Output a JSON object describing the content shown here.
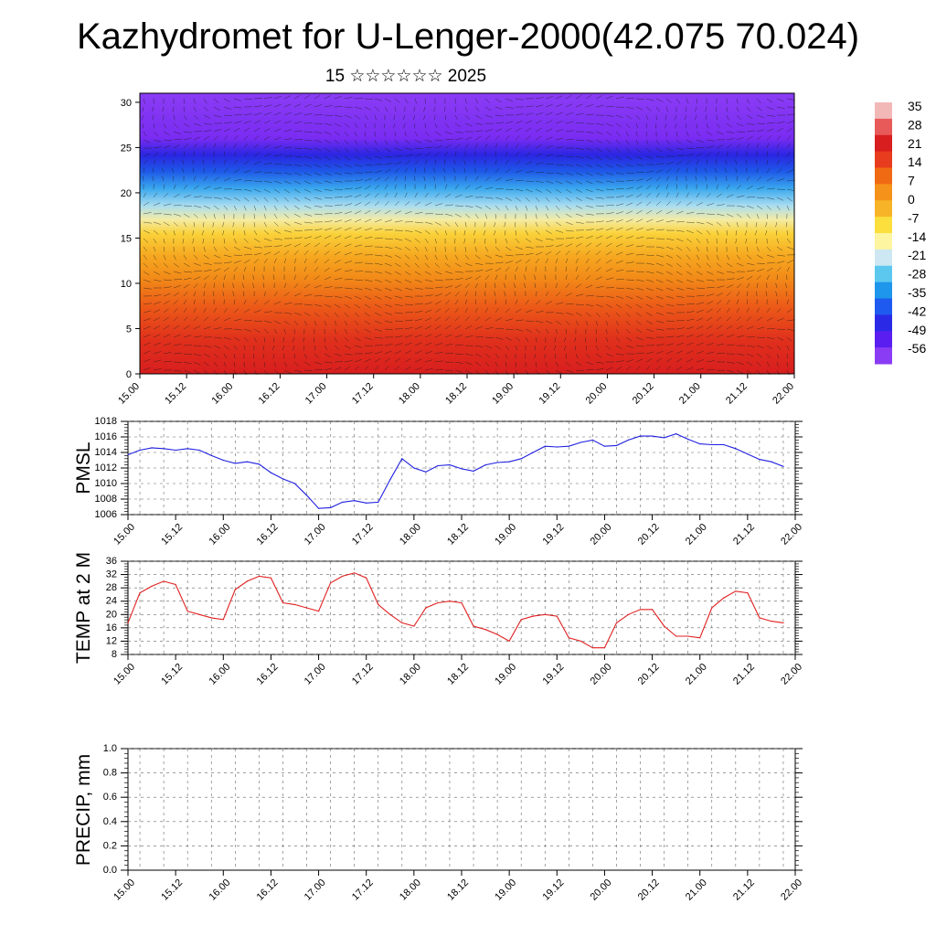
{
  "header": {
    "title": "Kazhydromet for U-Lenger-2000(42.075 70.024)",
    "subtitle": "15 ☆☆☆☆☆☆ 2025"
  },
  "colors": {
    "pmsl_line": "#1f1fe0",
    "temp_line": "#e01f1f",
    "frame": "#000000",
    "grid": "#666666"
  },
  "chart_data": [
    {
      "type": "heatmap",
      "title": "",
      "x_ticks": [
        "15.00",
        "15.12",
        "16.00",
        "16.12",
        "17.00",
        "17.12",
        "18.00",
        "18.12",
        "19.00",
        "19.12",
        "20.00",
        "20.12",
        "21.00",
        "21.12",
        "22.00"
      ],
      "y_ticks": [
        "0",
        "5",
        "10",
        "15",
        "20",
        "25",
        "30"
      ],
      "ylim": [
        0,
        31
      ],
      "colorbar_labels": [
        "35",
        "28",
        "21",
        "14",
        "7",
        "0",
        "-7",
        "-14",
        "-21",
        "-28",
        "-35",
        "-42",
        "-49",
        "-56"
      ],
      "colorbar_colors": [
        "#f2b8b8",
        "#e85a5a",
        "#d81e1e",
        "#e83c1e",
        "#f06a14",
        "#f5921a",
        "#f8b428",
        "#fcdf3c",
        "#fdf5a0",
        "#cde8f2",
        "#5cc8f0",
        "#1e96ec",
        "#1e5af0",
        "#2a2ae6",
        "#5a1ef0",
        "#8a3cf4"
      ],
      "wind_vectors": "dense wind barbs over field",
      "grid": false
    },
    {
      "type": "line",
      "ylabel": "PMSL",
      "ylim": [
        1006,
        1018
      ],
      "y_ticks": [
        "1006",
        "1008",
        "1010",
        "1012",
        "1014",
        "1016",
        "1018"
      ],
      "x_ticks": [
        "15.00",
        "15.12",
        "16.00",
        "16.12",
        "17.00",
        "17.12",
        "18.00",
        "18.12",
        "19.00",
        "19.12",
        "20.00",
        "20.12",
        "21.00",
        "21.12",
        "22.00"
      ],
      "x_unit": "hours",
      "x": [
        0,
        3,
        6,
        9,
        12,
        15,
        18,
        21,
        24,
        27,
        30,
        33,
        36,
        39,
        42,
        45,
        48,
        51,
        54,
        57,
        60,
        63,
        66,
        69,
        72,
        75,
        78,
        81,
        84,
        87,
        90,
        93,
        96,
        99,
        102,
        105,
        108,
        111,
        114,
        117,
        120,
        123,
        126,
        129,
        132,
        135,
        138,
        141,
        144,
        147,
        150,
        153,
        156,
        159,
        162,
        165
      ],
      "series": [
        {
          "values": [
            1013.7,
            1014.3,
            1014.6,
            1014.5,
            1014.3,
            1014.5,
            1014.3,
            1013.6,
            1013.0,
            1012.6,
            1012.8,
            1012.5,
            1011.4,
            1010.6,
            1010.0,
            1008.5,
            1006.8,
            1006.9,
            1007.6,
            1007.8,
            1007.5,
            1007.6,
            1010.5,
            1013.2,
            1012.0,
            1011.5,
            1012.3,
            1012.4,
            1011.9,
            1011.6,
            1012.4,
            1012.7,
            1012.8,
            1013.2,
            1014.0,
            1014.8,
            1014.7,
            1014.8,
            1015.3,
            1015.6,
            1014.8,
            1014.9,
            1015.6,
            1016.1,
            1016.1,
            1015.9,
            1016.4,
            1015.7,
            1015.1,
            1015.0,
            1015.0,
            1014.5,
            1013.8,
            1013.1,
            1012.8,
            1012.2
          ]
        }
      ],
      "grid": true
    },
    {
      "type": "line",
      "ylabel": "TEMP at 2 M",
      "ylim": [
        8,
        36
      ],
      "y_ticks": [
        "8",
        "12",
        "16",
        "20",
        "24",
        "28",
        "32",
        "36"
      ],
      "x_ticks": [
        "15.00",
        "15.12",
        "16.00",
        "16.12",
        "17.00",
        "17.12",
        "18.00",
        "18.12",
        "19.00",
        "19.12",
        "20.00",
        "20.12",
        "21.00",
        "21.12",
        "22.00"
      ],
      "x_unit": "hours",
      "x": [
        0,
        3,
        6,
        9,
        12,
        15,
        18,
        21,
        24,
        27,
        30,
        33,
        36,
        39,
        42,
        45,
        48,
        51,
        54,
        57,
        60,
        63,
        66,
        69,
        72,
        75,
        78,
        81,
        84,
        87,
        90,
        93,
        96,
        99,
        102,
        105,
        108,
        111,
        114,
        117,
        120,
        123,
        126,
        129,
        132,
        135,
        138,
        141,
        144,
        147,
        150,
        153,
        156,
        159,
        162,
        165
      ],
      "series": [
        {
          "values": [
            17.5,
            26.5,
            28.5,
            30.0,
            29.0,
            21.0,
            20.0,
            19.0,
            18.5,
            27.5,
            30.0,
            31.5,
            31.0,
            23.5,
            23.0,
            22.0,
            21.0,
            29.5,
            31.5,
            32.5,
            31.0,
            23.0,
            20.0,
            17.5,
            16.5,
            22.0,
            23.5,
            24.0,
            23.5,
            16.5,
            15.5,
            14.0,
            12.0,
            18.5,
            19.5,
            20.0,
            19.5,
            13.0,
            12.0,
            10.0,
            10.0,
            17.5,
            20.0,
            21.5,
            21.5,
            16.5,
            13.5,
            13.5,
            13.0,
            22.0,
            25.0,
            27.0,
            26.5,
            19.0,
            18.0,
            17.5
          ]
        }
      ],
      "grid": true
    },
    {
      "type": "line",
      "ylabel": "PRECIP, mm",
      "ylim": [
        0.0,
        1.0
      ],
      "y_ticks": [
        "0.0",
        "0.2",
        "0.4",
        "0.6",
        "0.8",
        "1.0"
      ],
      "x_ticks": [
        "15.00",
        "15.12",
        "16.00",
        "16.12",
        "17.00",
        "17.12",
        "18.00",
        "18.12",
        "19.00",
        "19.12",
        "20.00",
        "20.12",
        "21.00",
        "21.12",
        "22.00"
      ],
      "x_unit": "hours",
      "x": [
        0,
        168
      ],
      "series": [
        {
          "values": [
            0.0,
            0.0
          ]
        }
      ],
      "grid": true
    }
  ]
}
